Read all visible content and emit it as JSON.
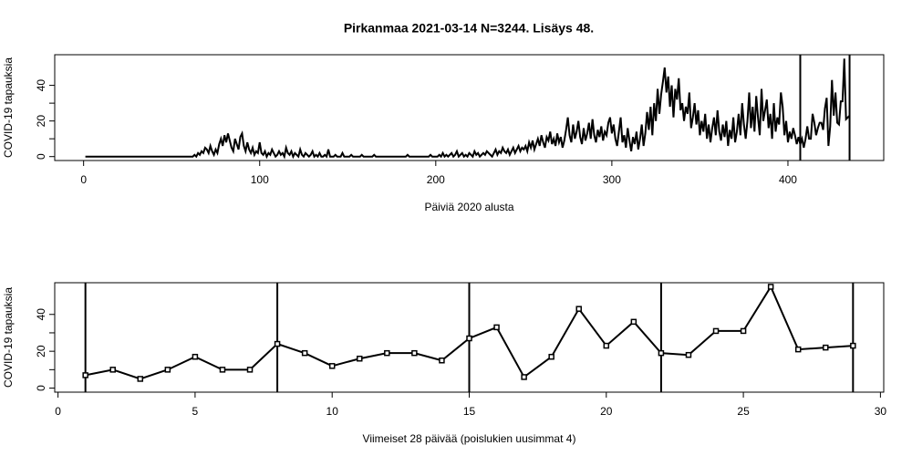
{
  "chart_data": [
    {
      "type": "line",
      "title": "Pirkanmaa 2021-03-14 N=3244. Lisäys 48.",
      "xlabel": "Päiviä 2020 alusta",
      "ylabel": "COVID-19 tapauksia",
      "x": [
        1,
        2,
        3,
        4,
        5,
        6,
        7,
        8,
        9,
        10,
        11,
        12,
        13,
        14,
        15,
        16,
        17,
        18,
        19,
        20,
        21,
        22,
        23,
        24,
        25,
        26,
        27,
        28,
        29,
        30,
        31,
        32,
        33,
        34,
        35,
        36,
        37,
        38,
        39,
        40,
        41,
        42,
        43,
        44,
        45,
        46,
        47,
        48,
        49,
        50,
        51,
        52,
        53,
        54,
        55,
        56,
        57,
        58,
        59,
        60,
        61,
        62,
        63,
        64,
        65,
        66,
        67,
        68,
        69,
        70,
        71,
        72,
        73,
        74,
        75,
        76,
        77,
        78,
        79,
        80,
        81,
        82,
        83,
        84,
        85,
        86,
        87,
        88,
        89,
        90,
        91,
        92,
        93,
        94,
        95,
        96,
        97,
        98,
        99,
        100,
        101,
        102,
        103,
        104,
        105,
        106,
        107,
        108,
        109,
        110,
        111,
        112,
        113,
        114,
        115,
        116,
        117,
        118,
        119,
        120,
        121,
        122,
        123,
        124,
        125,
        126,
        127,
        128,
        129,
        130,
        131,
        132,
        133,
        134,
        135,
        136,
        137,
        138,
        139,
        140,
        141,
        142,
        143,
        144,
        145,
        146,
        147,
        148,
        149,
        150,
        151,
        152,
        153,
        154,
        155,
        156,
        157,
        158,
        159,
        160,
        161,
        162,
        163,
        164,
        165,
        166,
        167,
        168,
        169,
        170,
        171,
        172,
        173,
        174,
        175,
        176,
        177,
        178,
        179,
        180,
        181,
        182,
        183,
        184,
        185,
        186,
        187,
        188,
        189,
        190,
        191,
        192,
        193,
        194,
        195,
        196,
        197,
        198,
        199,
        200,
        201,
        202,
        203,
        204,
        205,
        206,
        207,
        208,
        209,
        210,
        211,
        212,
        213,
        214,
        215,
        216,
        217,
        218,
        219,
        220,
        221,
        222,
        223,
        224,
        225,
        226,
        227,
        228,
        229,
        230,
        231,
        232,
        233,
        234,
        235,
        236,
        237,
        238,
        239,
        240,
        241,
        242,
        243,
        244,
        245,
        246,
        247,
        248,
        249,
        250,
        251,
        252,
        253,
        254,
        255,
        256,
        257,
        258,
        259,
        260,
        261,
        262,
        263,
        264,
        265,
        266,
        267,
        268,
        269,
        270,
        271,
        272,
        273,
        274,
        275,
        276,
        277,
        278,
        279,
        280,
        281,
        282,
        283,
        284,
        285,
        286,
        287,
        288,
        289,
        290,
        291,
        292,
        293,
        294,
        295,
        296,
        297,
        298,
        299,
        300,
        301,
        302,
        303,
        304,
        305,
        306,
        307,
        308,
        309,
        310,
        311,
        312,
        313,
        314,
        315,
        316,
        317,
        318,
        319,
        320,
        321,
        322,
        323,
        324,
        325,
        326,
        327,
        328,
        329,
        330,
        331,
        332,
        333,
        334,
        335,
        336,
        337,
        338,
        339,
        340,
        341,
        342,
        343,
        344,
        345,
        346,
        347,
        348,
        349,
        350,
        351,
        352,
        353,
        354,
        355,
        356,
        357,
        358,
        359,
        360,
        361,
        362,
        363,
        364,
        365,
        366,
        367,
        368,
        369,
        370,
        371,
        372,
        373,
        374,
        375,
        376,
        377,
        378,
        379,
        380,
        381,
        382,
        383,
        384,
        385,
        386,
        387,
        388,
        389,
        390,
        391,
        392,
        393,
        394,
        395,
        396,
        397,
        398,
        399,
        400,
        401,
        402,
        403,
        404,
        405,
        406,
        407,
        408,
        409,
        410,
        411,
        412,
        413,
        414,
        415,
        416,
        417,
        418,
        419,
        420,
        421,
        422,
        423,
        424,
        425,
        426,
        427,
        428,
        429,
        430,
        431,
        432,
        433,
        434,
        435
      ],
      "values": [
        0,
        0,
        0,
        0,
        0,
        0,
        0,
        0,
        0,
        0,
        0,
        0,
        0,
        0,
        0,
        0,
        0,
        0,
        0,
        0,
        0,
        0,
        0,
        0,
        0,
        0,
        0,
        0,
        0,
        0,
        0,
        0,
        0,
        0,
        0,
        0,
        0,
        0,
        0,
        0,
        0,
        0,
        0,
        0,
        0,
        0,
        0,
        0,
        0,
        0,
        0,
        0,
        0,
        0,
        0,
        0,
        0,
        0,
        0,
        0,
        0,
        0,
        1,
        0,
        2,
        1,
        3,
        2,
        5,
        4,
        2,
        6,
        3,
        1,
        4,
        2,
        7,
        10,
        6,
        12,
        8,
        13,
        9,
        5,
        3,
        10,
        7,
        4,
        11,
        13,
        6,
        3,
        8,
        4,
        2,
        5,
        1,
        3,
        2,
        8,
        2,
        1,
        3,
        0,
        2,
        1,
        4,
        2,
        0,
        1,
        3,
        1,
        2,
        0,
        5,
        2,
        1,
        3,
        0,
        2,
        1,
        0,
        4,
        1,
        0,
        2,
        1,
        0,
        1,
        3,
        0,
        1,
        0,
        2,
        0,
        0,
        1,
        0,
        4,
        0,
        0,
        0,
        1,
        0,
        0,
        0,
        2,
        0,
        0,
        0,
        0,
        1,
        0,
        0,
        0,
        0,
        0,
        1,
        0,
        0,
        0,
        0,
        0,
        0,
        1,
        0,
        0,
        0,
        0,
        0,
        0,
        0,
        0,
        0,
        0,
        0,
        0,
        0,
        0,
        0,
        0,
        0,
        0,
        1,
        0,
        0,
        0,
        0,
        0,
        0,
        0,
        0,
        0,
        0,
        0,
        0,
        1,
        0,
        0,
        0,
        0,
        1,
        0,
        2,
        0,
        1,
        0,
        1,
        2,
        0,
        1,
        3,
        0,
        1,
        2,
        0,
        1,
        0,
        2,
        1,
        0,
        3,
        1,
        2,
        0,
        1,
        2,
        1,
        3,
        2,
        1,
        0,
        2,
        4,
        1,
        3,
        2,
        5,
        3,
        2,
        4,
        1,
        3,
        5,
        2,
        4,
        6,
        3,
        5,
        4,
        6,
        3,
        8,
        5,
        9,
        4,
        7,
        10,
        6,
        12,
        8,
        5,
        11,
        9,
        14,
        7,
        10,
        6,
        13,
        8,
        11,
        5,
        9,
        15,
        22,
        12,
        8,
        18,
        10,
        14,
        20,
        11,
        7,
        16,
        9,
        13,
        19,
        10,
        21,
        12,
        8,
        15,
        11,
        17,
        9,
        14,
        12,
        19,
        22,
        13,
        18,
        10,
        6,
        14,
        22,
        8,
        12,
        5,
        16,
        9,
        3,
        11,
        7,
        14,
        4,
        10,
        18,
        6,
        13,
        25,
        15,
        28,
        12,
        30,
        20,
        38,
        24,
        35,
        42,
        50,
        36,
        45,
        28,
        40,
        22,
        38,
        32,
        44,
        26,
        30,
        20,
        28,
        24,
        36,
        16,
        22,
        30,
        18,
        26,
        12,
        20,
        14,
        24,
        10,
        18,
        8,
        16,
        22,
        12,
        26,
        14,
        9,
        18,
        11,
        20,
        6,
        15,
        10,
        22,
        8,
        14,
        24,
        12,
        30,
        18,
        10,
        20,
        36,
        16,
        28,
        14,
        34,
        22,
        12,
        38,
        20,
        26,
        32,
        16,
        24,
        10,
        30,
        14,
        22,
        18,
        36,
        28,
        12,
        20,
        8,
        14,
        10,
        16,
        12,
        7,
        11,
        7,
        10,
        5,
        10,
        17,
        10,
        10,
        24,
        19,
        12,
        16,
        19,
        19,
        15,
        27,
        33,
        6,
        17,
        43,
        23,
        36,
        19,
        18,
        31,
        31,
        55,
        21,
        22,
        23
      ],
      "color": "#000000",
      "xlim": [
        -16.4,
        454.4
      ],
      "ylim": [
        -2.2,
        57.2
      ],
      "xticks": [
        0,
        100,
        200,
        300,
        400
      ],
      "yticks": [
        0,
        20,
        40
      ],
      "yminor": [
        10,
        30
      ],
      "vlines": [
        407,
        435
      ]
    },
    {
      "type": "line",
      "xlabel": "Viimeiset 28 päivää (poislukien uusimmat 4)",
      "ylabel": "COVID-19 tapauksia",
      "x": [
        1,
        2,
        3,
        4,
        5,
        6,
        7,
        8,
        9,
        10,
        11,
        12,
        13,
        14,
        15,
        16,
        17,
        18,
        19,
        20,
        21,
        22,
        23,
        24,
        25,
        26,
        27,
        28,
        29
      ],
      "values": [
        7,
        10,
        5,
        10,
        17,
        10,
        10,
        24,
        19,
        12,
        16,
        19,
        19,
        15,
        27,
        33,
        6,
        17,
        43,
        23,
        36,
        19,
        18,
        31,
        31,
        55,
        21,
        22,
        23
      ],
      "color": "#000000",
      "markers": true,
      "xlim": [
        -0.12,
        30.12
      ],
      "ylim": [
        -2.2,
        57.2
      ],
      "xticks": [
        0,
        5,
        10,
        15,
        20,
        25,
        30
      ],
      "yticks": [
        0,
        20,
        40
      ],
      "yminor": [
        10,
        30
      ],
      "vlines": [
        1,
        8,
        15,
        22,
        29
      ]
    }
  ]
}
